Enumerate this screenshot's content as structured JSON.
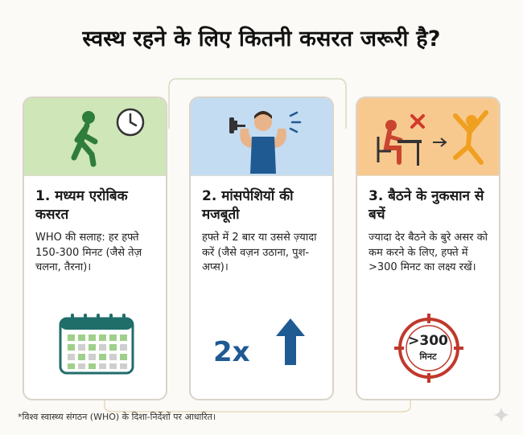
{
  "title": "स्वस्थ रहने के लिए कितनी कसरत जरूरी है?",
  "cards": [
    {
      "heading": "1. मध्यम एरोबिक कसरत",
      "body": "WHO की सलाह: हर हफ्ते 150-300 मिनट (जैसे तेज़ चलना, तैरना)।",
      "icons": [
        "walking-person-icon",
        "clock-icon",
        "calendar-icon"
      ],
      "color": "#cfe6b8"
    },
    {
      "heading": "2. मांसपेशियों की मजबूती",
      "body": "हफ्ते में 2 बार या उससे ज़्यादा करें (जैसे वज़न उठाना, पुश-अप्स)।",
      "graphic_text": "2x",
      "icons": [
        "weightlifter-icon",
        "up-arrow-icon"
      ],
      "color": "#c3dcf2"
    },
    {
      "heading": "3. बैठने के नुकसान से बचें",
      "body": "ज्यादा देर बैठने के बुरे असर को कम करने के लिए, हफ्ते में >300 मिनट का लक्ष्य रखें।",
      "target_value": ">300",
      "target_unit": "मिनट",
      "icons": [
        "sitting-at-desk-icon",
        "cross-icon",
        "arrow-right-icon",
        "jumping-person-icon",
        "target-icon"
      ],
      "color": "#f8c98f"
    }
  ],
  "footnote": "*विश्व स्वास्थ्य संगठन (WHO) के दिशा-निर्देशों पर आधारित।"
}
